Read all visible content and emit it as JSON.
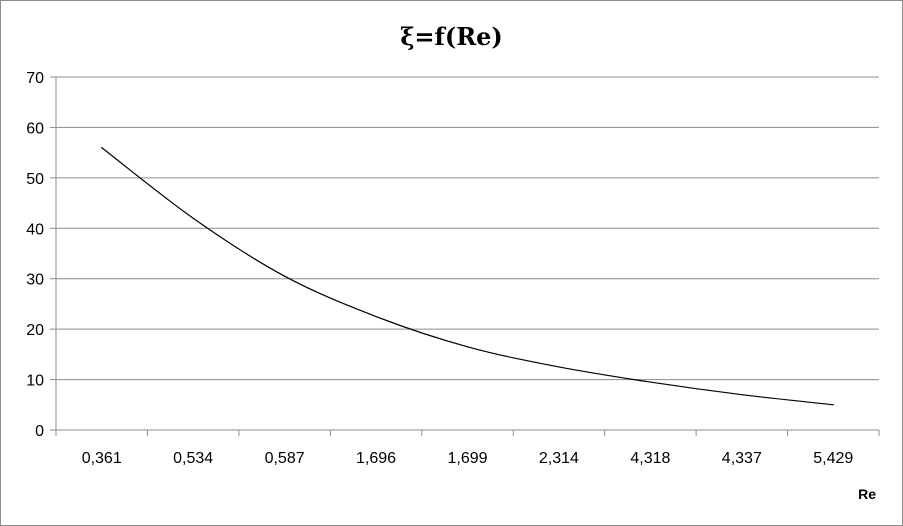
{
  "chart_data": {
    "type": "line",
    "title": "ξ=f(Re)",
    "xlabel": "Re",
    "ylabel": "",
    "categories": [
      "0,361",
      "0,534",
      "0,587",
      "1,696",
      "1,699",
      "2,314",
      "4,318",
      "4,337",
      "5,429"
    ],
    "series": [
      {
        "values": [
          56,
          42,
          30.5,
          22.5,
          16.5,
          12.5,
          9.5,
          7,
          5
        ]
      }
    ],
    "ylim": [
      0,
      70
    ],
    "yticks": [
      0,
      10,
      20,
      30,
      40,
      50,
      60,
      70
    ],
    "grid": true,
    "legend": "none",
    "colors": {
      "line": "#000000",
      "grid": "#8c8c8c",
      "axis": "#8c8c8c"
    }
  }
}
